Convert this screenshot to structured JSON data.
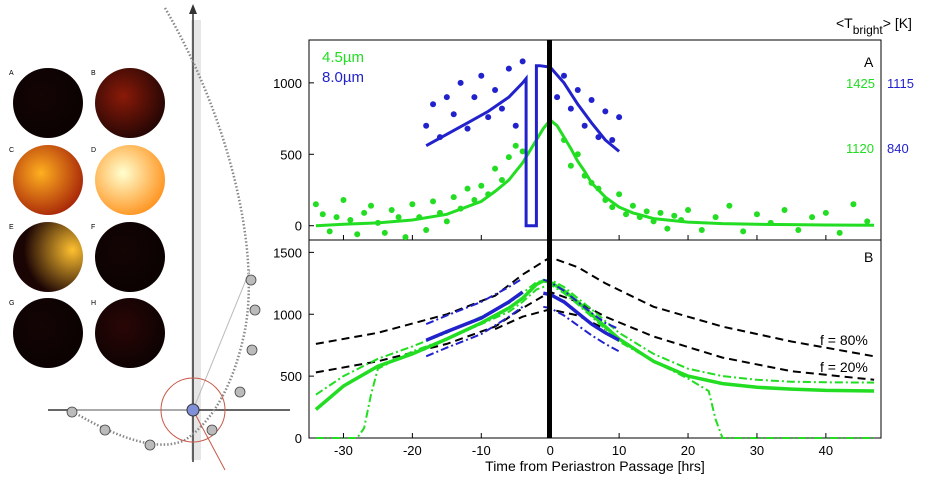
{
  "chart_data": [
    {
      "type": "scatter",
      "panel_label": "A",
      "xlabel": "Time from Periastron Passage [hrs]",
      "xlim": [
        -35,
        48
      ],
      "ylim": [
        -100,
        1300
      ],
      "x_ticks": [
        -30,
        -20,
        -10,
        0,
        10,
        20,
        30,
        40
      ],
      "y_ticks": [
        0,
        500,
        1000
      ],
      "corner_label": "<T",
      "corner_label_sub": "bright",
      "corner_label_end": "> [K]",
      "legend": [
        "4.5µm",
        "8.0µm"
      ],
      "right_annotations": [
        {
          "y": 1000,
          "green": "1425",
          "blue": "1115"
        },
        {
          "y": 500,
          "green": "1120",
          "blue": "840"
        }
      ],
      "series": [
        {
          "color": "#22dd22",
          "style": "model",
          "x": [
            -34,
            -30,
            -25,
            -20,
            -15,
            -10,
            -8,
            -6,
            -5,
            -4,
            -3,
            -2,
            -1,
            0,
            1,
            2,
            3,
            4,
            5,
            6,
            8,
            10,
            12,
            15,
            20,
            25,
            30,
            35,
            40,
            47
          ],
          "y": [
            0,
            10,
            20,
            40,
            80,
            170,
            240,
            320,
            380,
            440,
            520,
            600,
            680,
            740,
            700,
            620,
            540,
            450,
            380,
            300,
            200,
            130,
            90,
            50,
            25,
            15,
            10,
            8,
            5,
            3
          ]
        },
        {
          "color": "#22dd22",
          "style": "points",
          "x": [
            -34,
            -33,
            -32,
            -31,
            -30,
            -29,
            -28,
            -27,
            -26,
            -25,
            -24,
            -23,
            -22,
            -21,
            -20,
            -19,
            -18,
            -17,
            -16,
            -15,
            -14,
            -13,
            -12,
            -11,
            -10,
            -9,
            -8,
            -7,
            -6,
            -5,
            -4,
            2,
            3,
            4,
            5,
            6,
            7,
            8,
            9,
            10,
            11,
            12,
            13,
            14,
            15,
            16,
            17,
            18,
            19,
            20,
            22,
            24,
            26,
            28,
            30,
            32,
            34,
            36,
            38,
            40,
            42,
            44,
            46
          ],
          "y": [
            150,
            80,
            -40,
            60,
            180,
            40,
            -60,
            90,
            140,
            20,
            -50,
            110,
            60,
            -80,
            150,
            60,
            -30,
            170,
            90,
            30,
            200,
            120,
            260,
            180,
            280,
            220,
            400,
            320,
            480,
            560,
            520,
            600,
            420,
            500,
            350,
            300,
            260,
            180,
            130,
            220,
            80,
            140,
            60,
            100,
            30,
            90,
            -20,
            70,
            40,
            110,
            -30,
            60,
            140,
            -40,
            80,
            20,
            110,
            -30,
            60,
            90,
            -50,
            150,
            30
          ]
        },
        {
          "color": "#2222cc",
          "style": "model",
          "x": [
            -18,
            -15,
            -12,
            -9,
            -6,
            -4,
            -3.5,
            -3.5,
            -2,
            -2,
            -1.5,
            0,
            2,
            4,
            6,
            8,
            10
          ],
          "y": [
            560,
            640,
            720,
            800,
            900,
            1000,
            1030,
            0,
            0,
            1120,
            1120,
            1110,
            1000,
            850,
            720,
            600,
            520
          ]
        },
        {
          "color": "#2222cc",
          "style": "points",
          "x": [
            -18,
            -17,
            -16,
            -15,
            -14,
            -13,
            -12,
            -11,
            -10,
            -9,
            -8,
            -7,
            -6,
            -5,
            -4,
            1,
            2,
            3,
            4,
            5,
            6,
            7,
            8,
            9,
            10
          ],
          "y": [
            700,
            850,
            620,
            900,
            780,
            1000,
            680,
            900,
            1050,
            760,
            950,
            820,
            1100,
            700,
            1150,
            900,
            1050,
            820,
            950,
            700,
            880,
            620,
            800,
            600,
            760
          ]
        }
      ]
    },
    {
      "type": "line",
      "panel_label": "B",
      "xlabel": "Time from Periastron Passage [hrs]",
      "xlim": [
        -35,
        48
      ],
      "ylim": [
        0,
        1600
      ],
      "x_ticks": [
        -30,
        -20,
        -10,
        0,
        10,
        20,
        30,
        40
      ],
      "y_ticks": [
        0,
        500,
        1000,
        1500
      ],
      "annotations": [
        "f = 80%",
        "f = 20%"
      ],
      "series": [
        {
          "color": "#000000",
          "style": "dashed",
          "x": [
            -34,
            -25,
            -15,
            -8,
            -4,
            0,
            4,
            8,
            15,
            25,
            35,
            47
          ],
          "y": [
            760,
            850,
            1000,
            1150,
            1320,
            1460,
            1380,
            1250,
            1060,
            900,
            780,
            660
          ]
        },
        {
          "color": "#000000",
          "style": "dashed",
          "x": [
            -34,
            -25,
            -15,
            -8,
            -4,
            0,
            4,
            8,
            15,
            25,
            35,
            47
          ],
          "y": [
            530,
            620,
            760,
            900,
            1050,
            1180,
            1100,
            980,
            820,
            650,
            540,
            470
          ]
        },
        {
          "color": "#000000",
          "style": "dashed",
          "x": [
            -8,
            -4,
            0,
            4,
            8
          ],
          "y": [
            880,
            980,
            1040,
            990,
            880
          ]
        },
        {
          "color": "#22dd22",
          "style": "solid",
          "x": [
            -34,
            -30,
            -25,
            -20,
            -15,
            -10,
            -6,
            -4,
            -2,
            -1,
            0,
            2,
            4,
            6,
            10,
            15,
            20,
            25,
            30,
            35,
            40,
            47
          ],
          "y": [
            230,
            420,
            580,
            680,
            800,
            930,
            1050,
            1130,
            1240,
            1270,
            1260,
            1190,
            1100,
            1000,
            800,
            620,
            500,
            440,
            410,
            395,
            385,
            380
          ]
        },
        {
          "color": "#22dd22",
          "style": "dashdot",
          "x": [
            -34,
            -30,
            -25,
            -20,
            -15,
            -10,
            -6,
            -4,
            -2,
            0,
            2,
            4,
            6,
            10,
            15,
            20,
            25,
            30,
            35,
            40,
            47
          ],
          "y": [
            350,
            500,
            640,
            740,
            850,
            980,
            1090,
            1170,
            1260,
            1280,
            1220,
            1130,
            1040,
            850,
            680,
            560,
            500,
            470,
            455,
            450,
            448
          ]
        },
        {
          "color": "#22dd22",
          "style": "dashdot",
          "x": [
            -34,
            -28,
            -27,
            -26,
            -25,
            -20,
            -15,
            -10,
            -6,
            -4,
            -2,
            0,
            2,
            4,
            6,
            10,
            15,
            20,
            23,
            24,
            25,
            30,
            40,
            47
          ],
          "y": [
            0,
            0,
            80,
            350,
            560,
            700,
            800,
            920,
            1020,
            1100,
            1200,
            1240,
            1170,
            1080,
            980,
            780,
            620,
            480,
            380,
            150,
            0,
            0,
            0,
            0
          ]
        },
        {
          "color": "#2222cc",
          "style": "solid",
          "x": [
            -18,
            -15,
            -10,
            -6,
            -4
          ],
          "y": [
            790,
            860,
            970,
            1100,
            1180
          ]
        },
        {
          "color": "#2222cc",
          "style": "solid",
          "x": [
            -1,
            0,
            2,
            4,
            6,
            8,
            10
          ],
          "y": [
            1170,
            1160,
            1100,
            1010,
            920,
            850,
            790
          ]
        },
        {
          "color": "#2222cc",
          "style": "dashdot",
          "x": [
            -18,
            -15,
            -10,
            -6,
            -4
          ],
          "y": [
            920,
            990,
            1100,
            1220,
            1290
          ]
        },
        {
          "color": "#2222cc",
          "style": "dashdot",
          "x": [
            -18,
            -15,
            -10,
            -6,
            -4
          ],
          "y": [
            660,
            730,
            840,
            980,
            1060
          ]
        },
        {
          "color": "#2222cc",
          "style": "dashdot",
          "x": [
            -1,
            0,
            2,
            4,
            6,
            8,
            10
          ],
          "y": [
            1280,
            1260,
            1190,
            1100,
            1010,
            930,
            880
          ]
        },
        {
          "color": "#2222cc",
          "style": "dashdot",
          "x": [
            -1,
            0,
            2,
            4,
            6,
            8,
            10
          ],
          "y": [
            1060,
            1050,
            990,
            910,
            830,
            760,
            700
          ]
        }
      ]
    }
  ],
  "diagram": {
    "panel_letters": [
      "A",
      "B",
      "C",
      "D",
      "E",
      "F",
      "G",
      "H"
    ],
    "sphere_colors": [
      [
        "#140404",
        "#0a0202"
      ],
      [
        "#8a1a08",
        "#1a0404"
      ],
      [
        "#ffb020",
        "#a01a06"
      ],
      [
        "#ffffd0",
        "#ff8a10"
      ],
      [
        "#ffc030",
        "#1a0404"
      ],
      [
        "#140404",
        "#0a0202"
      ],
      [
        "#140404",
        "#0a0202"
      ],
      [
        "#2a0606",
        "#0a0202"
      ]
    ]
  }
}
